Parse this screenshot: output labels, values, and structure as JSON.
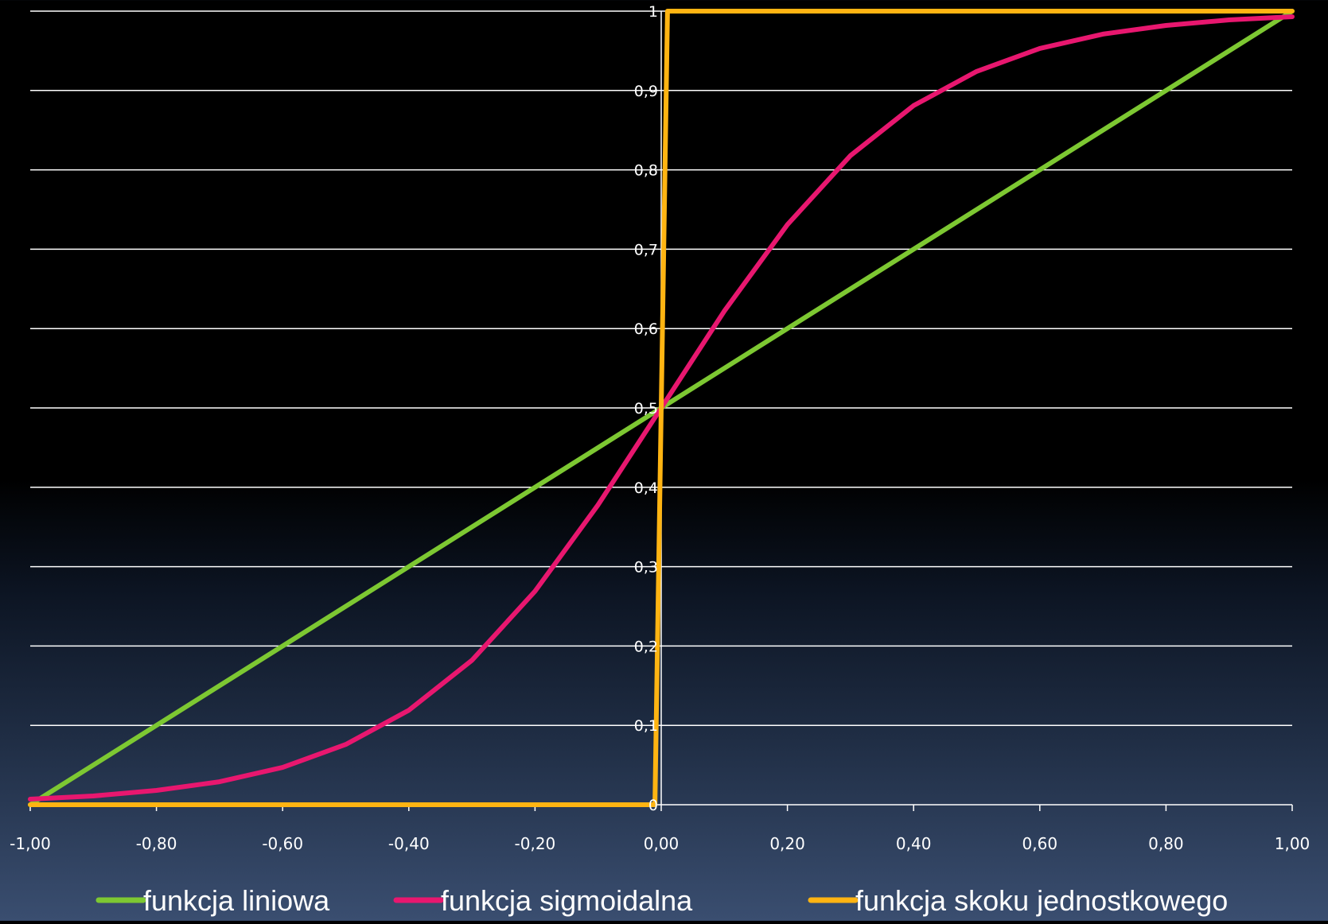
{
  "colors": {
    "background_top": "#000000",
    "background_bottom": "#3a4e70",
    "grid": "#ffffff",
    "axis": "#ffffff",
    "text": "#ffffff"
  },
  "chart_data": {
    "type": "line",
    "title": "",
    "xlabel": "",
    "ylabel": "",
    "xlim": [
      -1,
      1
    ],
    "ylim": [
      0,
      1
    ],
    "x_ticks": [
      -1,
      -0.8,
      -0.6,
      -0.4,
      -0.2,
      0,
      0.2,
      0.4,
      0.6,
      0.8,
      1
    ],
    "x_tick_labels": [
      "-1,00",
      "-0,80",
      "-0,60",
      "-0,40",
      "-0,20",
      "0,00",
      "0,20",
      "0,40",
      "0,60",
      "0,80",
      "1,00"
    ],
    "y_ticks": [
      0,
      0.1,
      0.2,
      0.3,
      0.4,
      0.5,
      0.6,
      0.7,
      0.8,
      0.9,
      1
    ],
    "y_tick_labels": [
      "0",
      "0,1",
      "0,2",
      "0,3",
      "0,4",
      "0,5",
      "0,6",
      "0,7",
      "0,8",
      "0,9",
      "1"
    ],
    "grid": true,
    "legend_position": "bottom",
    "series": [
      {
        "name": "funkcja liniowa",
        "color": "#7dc832",
        "x": [
          -1,
          1
        ],
        "y": [
          0,
          1
        ]
      },
      {
        "name": "funkcja sigmoidalna",
        "color": "#e8176f",
        "x": [
          -1,
          -0.9,
          -0.8,
          -0.7,
          -0.6,
          -0.5,
          -0.4,
          -0.3,
          -0.2,
          -0.1,
          0,
          0.1,
          0.2,
          0.3,
          0.4,
          0.5,
          0.6,
          0.7,
          0.8,
          0.9,
          1
        ],
        "y": [
          0.007,
          0.011,
          0.018,
          0.029,
          0.047,
          0.076,
          0.119,
          0.182,
          0.269,
          0.378,
          0.5,
          0.622,
          0.731,
          0.818,
          0.881,
          0.924,
          0.953,
          0.971,
          0.982,
          0.989,
          0.993
        ]
      },
      {
        "name": "funkcja skoku jednostkowego",
        "color": "#ffb412",
        "x": [
          -1,
          -0.01,
          0.01,
          1
        ],
        "y": [
          0,
          0,
          1,
          1
        ]
      }
    ]
  }
}
